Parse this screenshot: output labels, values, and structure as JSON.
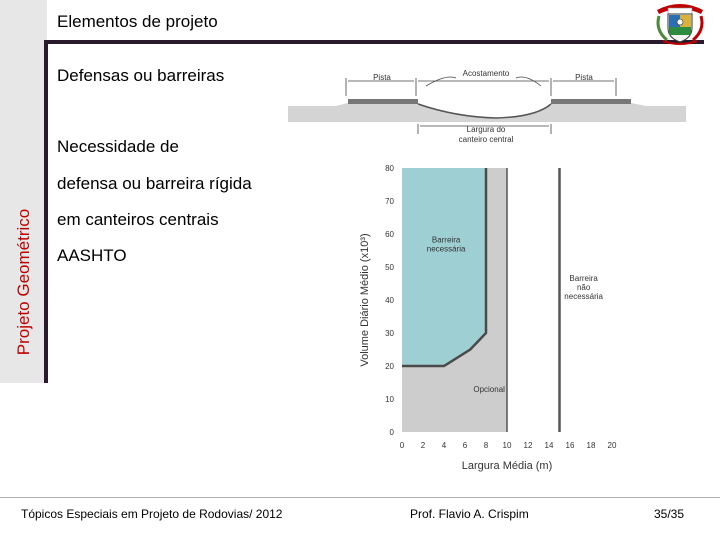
{
  "header": {
    "title": "Elementos de projeto",
    "side_title": "Projeto Geométrico"
  },
  "bullets": [
    "Defensas ou barreiras",
    "Necessidade de",
    "defensa ou barreira rígida",
    "em canteiros centrais",
    "AASHTO"
  ],
  "diagram": {
    "label_left": "Pista",
    "label_center": "Acostamento",
    "label_right": "Pista",
    "label_bottom_1": "Largura do",
    "label_bottom_2": "canteiro central"
  },
  "chart_data": {
    "type": "area",
    "xlabel": "Largura Média (m)",
    "ylabel": "Volume Diário Médio (x10³)",
    "xlim": [
      0,
      20
    ],
    "ylim": [
      0,
      80
    ],
    "x_ticks": [
      "0",
      "2",
      "4",
      "6",
      "8",
      "10",
      "12",
      "14",
      "16",
      "18",
      "20"
    ],
    "y_ticks": [
      "0",
      "10",
      "20",
      "30",
      "40",
      "50",
      "60",
      "70",
      "80"
    ],
    "regions": [
      {
        "name_lines": [
          "Barreira",
          "necessária"
        ],
        "boundary": [
          [
            0,
            80
          ],
          [
            0,
            20
          ],
          [
            4,
            20
          ],
          [
            6.5,
            25
          ],
          [
            8,
            30
          ],
          [
            8,
            80
          ]
        ],
        "color": "#9ed0d3"
      },
      {
        "name_lines": [
          "Opcional"
        ],
        "boundary": [
          [
            0,
            20
          ],
          [
            0,
            0
          ],
          [
            10,
            0
          ],
          [
            10,
            80
          ],
          [
            8,
            80
          ],
          [
            8,
            30
          ],
          [
            6.5,
            25
          ],
          [
            4,
            20
          ]
        ],
        "color": "#cdcdcd"
      },
      {
        "name_lines": [
          "Barreira",
          "não",
          "necessária"
        ],
        "boundary": [
          [
            10,
            80
          ],
          [
            10,
            0
          ],
          [
            20,
            0
          ],
          [
            20,
            80
          ]
        ],
        "color": "#ffffff"
      }
    ],
    "boundary_line": [
      [
        0,
        20
      ],
      [
        4,
        20
      ],
      [
        6.5,
        25
      ],
      [
        8,
        30
      ],
      [
        8,
        80
      ]
    ],
    "vertical_line_x": 10,
    "threshold_line_x": 15
  },
  "footer": {
    "left": "Tópicos Especiais em Projeto de Rodovias/ 2012",
    "center": "Prof. Flavio  A. Crispim",
    "right": "35/35"
  },
  "colors": {
    "accent_red": "#c00000",
    "dark_bar": "#2a1a2e",
    "sidebar_bg": "#e7e7e7",
    "teal_region": "#9ed0d3",
    "gray_region": "#cdcdcd"
  },
  "icons": {
    "logo": "coat-of-arms-icon"
  }
}
